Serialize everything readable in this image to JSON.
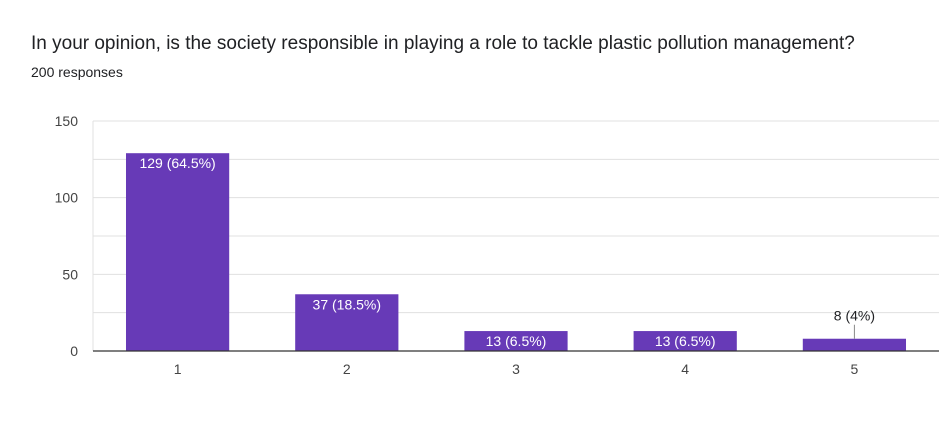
{
  "question": "In your opinion, is the society responsible in playing a role to tackle plastic pollution management?",
  "responses": "200 responses",
  "colors": {
    "bar": "#673ab7",
    "grid": "#e0e0e0",
    "axis": "#333333",
    "tick_text": "#444444",
    "label_inside": "#ffffff",
    "label_outside": "#202124"
  },
  "chart_data": {
    "type": "bar",
    "categories": [
      "1",
      "2",
      "3",
      "4",
      "5"
    ],
    "values": [
      129,
      37,
      13,
      13,
      8
    ],
    "data_labels": [
      "129 (64.5%)",
      "37 (18.5%)",
      "13 (6.5%)",
      "13 (6.5%)",
      "8 (4%)"
    ],
    "ylim": [
      0,
      150
    ],
    "yticks": [
      0,
      50,
      100,
      150
    ],
    "grid": true
  }
}
